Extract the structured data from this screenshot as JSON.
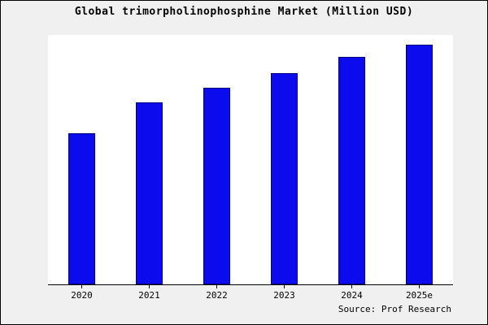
{
  "chart_data": {
    "type": "bar",
    "title": "Global trimorpholinophosphine Market (Million USD)",
    "categories": [
      "2020",
      "2021",
      "2022",
      "2023",
      "2024",
      "2025e"
    ],
    "values": [
      63,
      76,
      82,
      88,
      95,
      100
    ],
    "ylim": [
      0,
      104
    ],
    "xlabel": "",
    "ylabel": "",
    "grid": false,
    "legend": false,
    "source": "Source: Prof Research",
    "bar_fill": "#0b0bee",
    "bar_border": "#000080",
    "outer_background": "#f0f0f0",
    "plot_background": "#ffffff"
  }
}
